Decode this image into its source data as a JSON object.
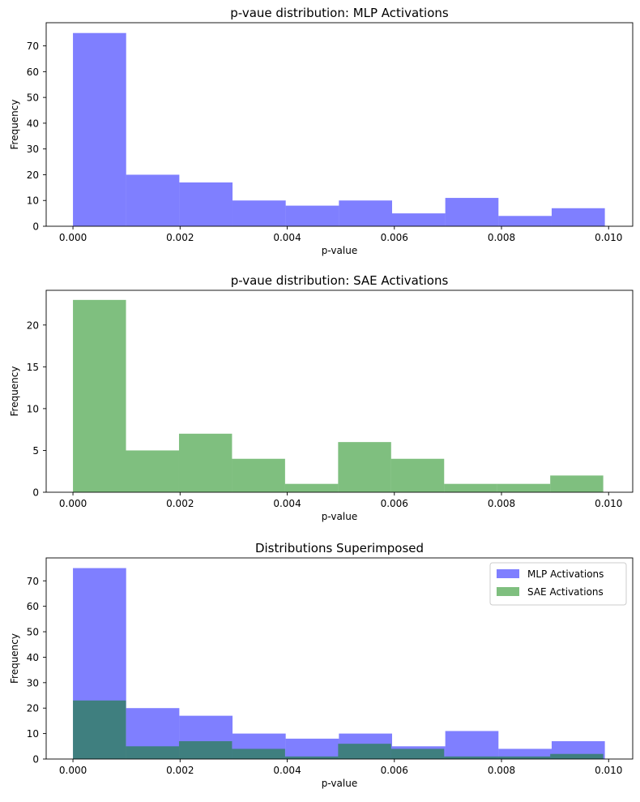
{
  "chart_data": [
    {
      "type": "bar",
      "title": "p-vaue distribution: MLP Activations",
      "xlabel": "p-value",
      "ylabel": "Frequency",
      "xlim": [
        -0.0005,
        0.01045
      ],
      "ylim": [
        0,
        79
      ],
      "xticks": [
        "0.000",
        "0.002",
        "0.004",
        "0.006",
        "0.008",
        "0.010"
      ],
      "yticks": [
        "0",
        "10",
        "20",
        "30",
        "40",
        "50",
        "60",
        "70"
      ],
      "bin_edges": [
        0.0,
        0.000993,
        0.001986,
        0.002979,
        0.003972,
        0.004965,
        0.005958,
        0.006951,
        0.007944,
        0.008937,
        0.00993
      ],
      "series": [
        {
          "name": "",
          "color": "#8080ff",
          "values": [
            75,
            20,
            17,
            10,
            8,
            10,
            5,
            11,
            4,
            7
          ]
        }
      ],
      "grid": false
    },
    {
      "type": "bar",
      "title": "p-vaue distribution: SAE Activations",
      "xlabel": "p-value",
      "ylabel": "Frequency",
      "xlim": [
        -0.0005,
        0.01045
      ],
      "ylim": [
        0,
        24.15
      ],
      "xticks": [
        "0.000",
        "0.002",
        "0.004",
        "0.006",
        "0.008",
        "0.010"
      ],
      "yticks": [
        "0",
        "5",
        "10",
        "15",
        "20"
      ],
      "bin_edges": [
        0.0,
        0.00099,
        0.00198,
        0.00297,
        0.00396,
        0.00495,
        0.00594,
        0.00693,
        0.00792,
        0.00891,
        0.0099
      ],
      "series": [
        {
          "name": "",
          "color": "#80c080",
          "values": [
            23,
            5,
            7,
            4,
            1,
            6,
            4,
            1,
            1,
            2
          ]
        }
      ],
      "grid": false
    },
    {
      "type": "bar",
      "title": "Distributions Superimposed",
      "xlabel": "p-value",
      "ylabel": "Frequency",
      "xlim": [
        -0.0005,
        0.01045
      ],
      "ylim": [
        0,
        79
      ],
      "xticks": [
        "0.000",
        "0.002",
        "0.004",
        "0.006",
        "0.008",
        "0.010"
      ],
      "yticks": [
        "0",
        "10",
        "20",
        "30",
        "40",
        "50",
        "60",
        "70"
      ],
      "legend": "top-right",
      "series": [
        {
          "name": "MLP Activations",
          "color": "#8080ff",
          "bin_edges": [
            0.0,
            0.000993,
            0.001986,
            0.002979,
            0.003972,
            0.004965,
            0.005958,
            0.006951,
            0.007944,
            0.008937,
            0.00993
          ],
          "values": [
            75,
            20,
            17,
            10,
            8,
            10,
            5,
            11,
            4,
            7
          ]
        },
        {
          "name": "SAE Activations",
          "color": "#80c080",
          "bin_edges": [
            0.0,
            0.00099,
            0.00198,
            0.00297,
            0.00396,
            0.00495,
            0.00594,
            0.00693,
            0.00792,
            0.00891,
            0.0099
          ],
          "values": [
            23,
            5,
            7,
            4,
            1,
            6,
            4,
            1,
            1,
            2
          ]
        }
      ],
      "grid": false
    }
  ]
}
